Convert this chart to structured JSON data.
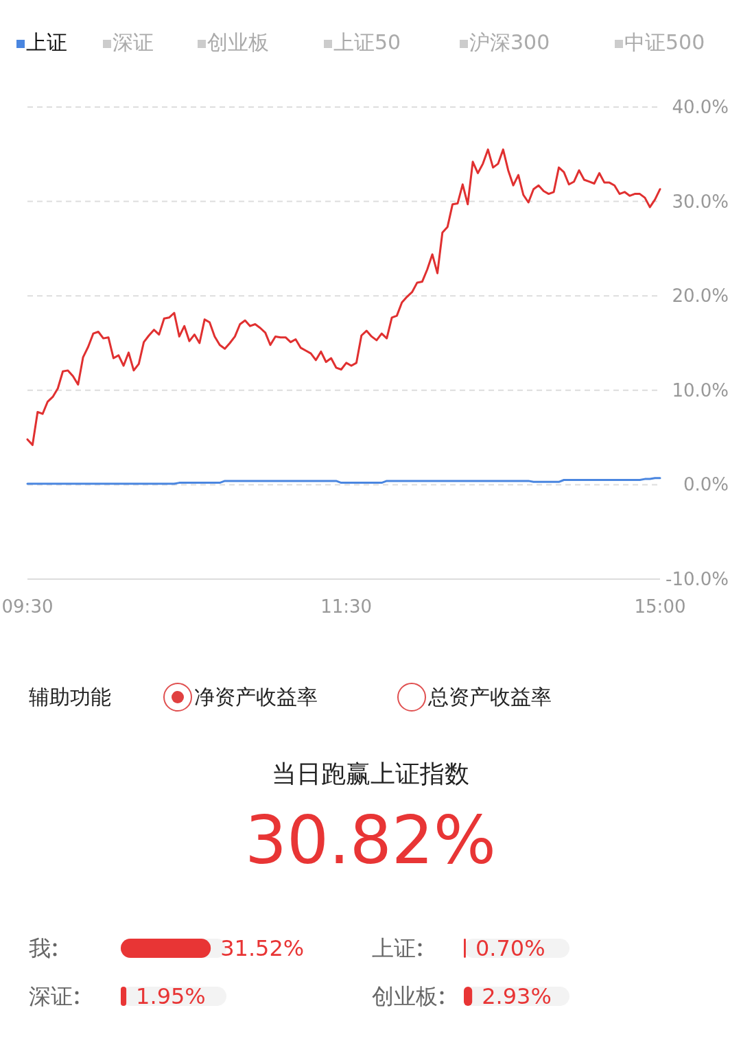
{
  "chart_data": [
    {
      "type": "line",
      "categories": [
        "09:30",
        null,
        null,
        null,
        null,
        null,
        null,
        null,
        null,
        null,
        null,
        null,
        null,
        null,
        null,
        null,
        null,
        null,
        null,
        null,
        null,
        null,
        null,
        null,
        null,
        null,
        null,
        null,
        null,
        null,
        null,
        null,
        null,
        null,
        null,
        null,
        null,
        null,
        null,
        null,
        null,
        null,
        null,
        null,
        null,
        null,
        null,
        null,
        null,
        null,
        null,
        null,
        null,
        null,
        null,
        null,
        null,
        null,
        null,
        null,
        null,
        null,
        null,
        "11:30",
        null,
        null,
        null,
        null,
        null,
        null,
        null,
        null,
        null,
        null,
        null,
        null,
        null,
        null,
        null,
        null,
        null,
        null,
        null,
        null,
        null,
        null,
        null,
        null,
        null,
        null,
        null,
        null,
        null,
        null,
        null,
        null,
        null,
        null,
        null,
        null,
        null,
        null,
        null,
        null,
        null,
        null,
        null,
        null,
        null,
        null,
        null,
        null,
        null,
        null,
        null,
        null,
        null,
        null,
        null,
        null,
        null,
        null,
        null,
        null,
        null,
        "15:00"
      ],
      "ylim": [
        -10,
        40
      ],
      "yticks": [
        {
          "value": -10,
          "label": "-10.0%"
        },
        {
          "value": 0,
          "label": "0.0%"
        },
        {
          "value": 10,
          "label": "10.0%"
        },
        {
          "value": 20,
          "label": "20.0%"
        },
        {
          "value": 30,
          "label": "30.0%"
        },
        {
          "value": 40,
          "label": "40.0%"
        }
      ],
      "grid": "y",
      "legend": "top",
      "annotations": [
        "深证",
        "创业板",
        "上证50",
        "沪深300",
        "中证500",
        "辅助功能",
        "净资产收益率",
        "总资产收益率"
      ],
      "series": [
        {
          "color": "#e03030",
          "values": [
            4.8,
            4.2,
            7.7,
            7.5,
            8.8,
            9.3,
            10.2,
            12.0,
            12.1,
            11.5,
            10.6,
            13.5,
            14.6,
            16.0,
            16.2,
            15.5,
            15.6,
            13.4,
            13.7,
            12.6,
            14.0,
            12.1,
            12.8,
            15.1,
            15.8,
            16.4,
            15.9,
            17.6,
            17.7,
            18.2,
            15.7,
            16.8,
            15.2,
            15.9,
            15.0,
            17.5,
            17.2,
            15.7,
            14.8,
            14.4,
            15.0,
            15.7,
            17.0,
            17.4,
            16.8,
            17.0,
            16.6,
            16.1,
            14.8,
            15.7,
            15.6,
            15.6,
            15.1,
            15.4,
            14.5,
            14.2,
            13.9,
            13.2,
            14.1,
            13.0,
            13.4,
            12.4,
            12.2,
            12.9,
            12.6,
            12.9,
            15.8,
            16.3,
            15.7,
            15.3,
            16.0,
            15.5,
            17.7,
            17.9,
            19.3,
            19.9,
            20.4,
            21.4,
            21.5,
            22.8,
            24.4,
            22.4,
            26.7,
            27.3,
            29.7,
            29.8,
            31.8,
            29.7,
            34.2,
            33.0,
            34.0,
            35.5,
            33.6,
            34.0,
            35.5,
            33.3,
            31.7,
            32.8,
            30.7,
            29.9,
            31.3,
            31.7,
            31.1,
            30.8,
            31.0,
            33.6,
            33.1,
            31.8,
            32.1,
            33.3,
            32.3,
            32.1,
            31.9,
            33.0,
            32.0,
            32.0,
            31.7,
            30.8,
            31.0,
            30.6,
            30.8,
            30.8,
            30.4,
            29.4,
            30.2,
            31.3
          ]
        },
        {
          "name": "上证",
          "color": "#4a86e0",
          "values": [
            0.1,
            0.1,
            0.1,
            0.1,
            0.1,
            0.1,
            0.1,
            0.1,
            0.1,
            0.1,
            0.1,
            0.1,
            0.1,
            0.1,
            0.1,
            0.1,
            0.1,
            0.1,
            0.1,
            0.1,
            0.1,
            0.1,
            0.1,
            0.1,
            0.1,
            0.1,
            0.1,
            0.1,
            0.1,
            0.1,
            0.2,
            0.2,
            0.2,
            0.2,
            0.2,
            0.2,
            0.2,
            0.2,
            0.2,
            0.4,
            0.4,
            0.4,
            0.4,
            0.4,
            0.4,
            0.4,
            0.4,
            0.4,
            0.4,
            0.4,
            0.4,
            0.4,
            0.4,
            0.4,
            0.4,
            0.4,
            0.4,
            0.4,
            0.4,
            0.4,
            0.4,
            0.4,
            0.2,
            0.2,
            0.2,
            0.2,
            0.2,
            0.2,
            0.2,
            0.2,
            0.2,
            0.4,
            0.4,
            0.4,
            0.4,
            0.4,
            0.4,
            0.4,
            0.4,
            0.4,
            0.4,
            0.4,
            0.4,
            0.4,
            0.4,
            0.4,
            0.4,
            0.4,
            0.4,
            0.4,
            0.4,
            0.4,
            0.4,
            0.4,
            0.4,
            0.4,
            0.4,
            0.4,
            0.4,
            0.4,
            0.3,
            0.3,
            0.3,
            0.3,
            0.3,
            0.3,
            0.5,
            0.5,
            0.5,
            0.5,
            0.5,
            0.5,
            0.5,
            0.5,
            0.5,
            0.5,
            0.5,
            0.5,
            0.5,
            0.5,
            0.5,
            0.5,
            0.6,
            0.6,
            0.7,
            0.7
          ]
        }
      ]
    },
    {
      "type": "other",
      "title": "当日跑赢上证指数",
      "subtitle": "30.82%"
    },
    {
      "type": "bar",
      "orientation": "horizontal",
      "categories": [
        "我",
        "深证"
      ],
      "values": [
        31.52,
        1.95
      ],
      "value_labels": [
        "31.52%",
        "1.95%"
      ],
      "color": "#e83535",
      "xlim": [
        0,
        37
      ]
    },
    {
      "type": "bar",
      "orientation": "horizontal",
      "categories": [
        "上证",
        "创业板"
      ],
      "values": [
        0.7,
        2.93
      ],
      "value_labels": [
        "0.70%",
        "2.93%"
      ],
      "color": "#e83535",
      "xlim": [
        0,
        37
      ]
    }
  ]
}
